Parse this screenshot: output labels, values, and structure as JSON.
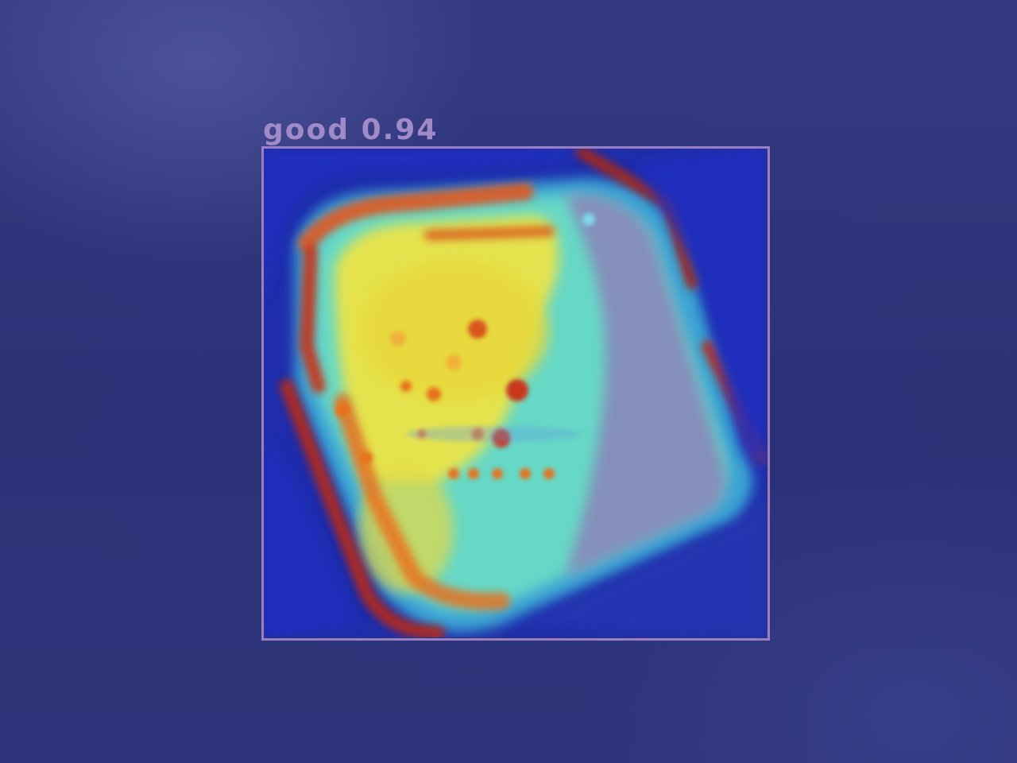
{
  "detection": {
    "label": "good",
    "score": "0.94",
    "box_color": "#9a7fc4"
  },
  "colors": {
    "background": "#2c3276",
    "heat_low": "#1e2aa8",
    "heat_mid": "#5fe0c0",
    "heat_high": "#f3e640",
    "heat_peak": "#b52a1a"
  }
}
